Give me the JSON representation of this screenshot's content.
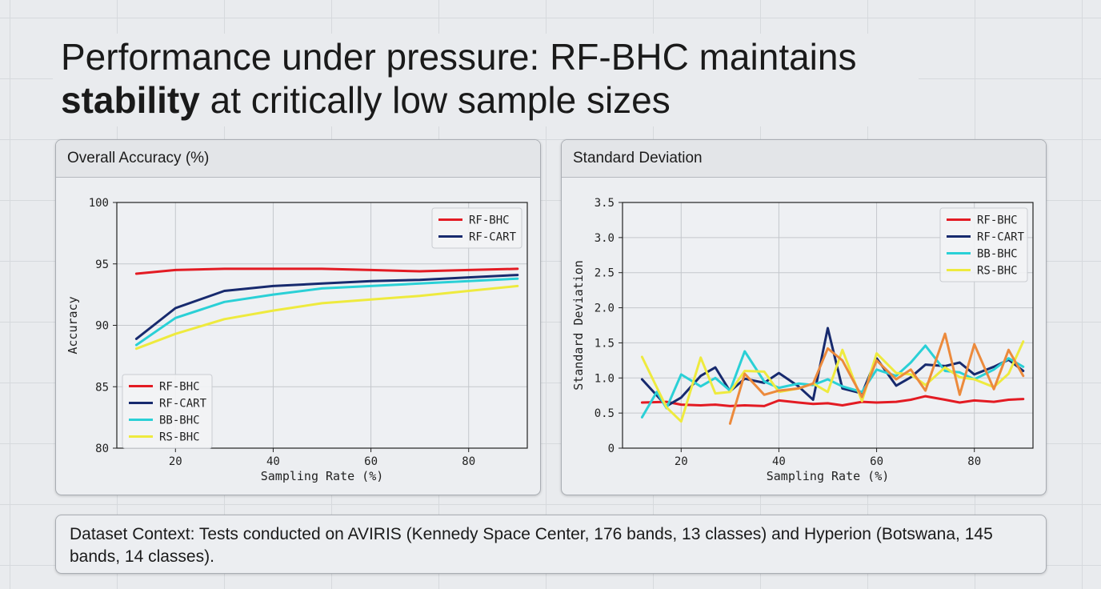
{
  "headline": {
    "part1": "Performance under pressure: RF-BHC maintains",
    "bold": "stability",
    "part2": " at critically low sample sizes"
  },
  "context": {
    "text": "Dataset Context: Tests conducted on AVIRIS (Kennedy Space Center, 176 bands, 13 classes) and Hyperion (Botswana, 145 bands, 14 classes)."
  },
  "colors": {
    "RF-BHC": "#e31b23",
    "RF-CART": "#172a6e",
    "BB-BHC": "#2ad0d6",
    "RS-BHC": "#eeea3e",
    "extra": "#ec8a3c"
  },
  "chart_data": [
    {
      "panel_title": "Overall Accuracy (%)",
      "type": "line",
      "xlabel": "Sampling Rate (%)",
      "ylabel": "Accuracy",
      "xlim": [
        8,
        92
      ],
      "ylim": [
        80,
        100
      ],
      "xticks": [
        20,
        40,
        60,
        80
      ],
      "yticks": [
        80,
        85,
        90,
        95,
        100
      ],
      "grid": true,
      "legends": [
        {
          "placement": "top-right",
          "entries": [
            "RF-BHC",
            "RF-CART"
          ]
        },
        {
          "placement": "bottom-left",
          "entries": [
            "RF-BHC",
            "RF-CART",
            "BB-BHC",
            "RS-BHC"
          ]
        }
      ],
      "series": [
        {
          "name": "RF-BHC",
          "x": [
            12,
            20,
            30,
            40,
            50,
            60,
            70,
            80,
            90
          ],
          "y": [
            94.2,
            94.5,
            94.6,
            94.6,
            94.6,
            94.5,
            94.4,
            94.5,
            94.6
          ]
        },
        {
          "name": "RF-CART",
          "x": [
            12,
            20,
            30,
            40,
            50,
            60,
            70,
            80,
            90
          ],
          "y": [
            88.9,
            91.4,
            92.8,
            93.2,
            93.4,
            93.6,
            93.7,
            93.9,
            94.1
          ]
        },
        {
          "name": "BB-BHC",
          "x": [
            12,
            20,
            30,
            40,
            50,
            60,
            70,
            80,
            90
          ],
          "y": [
            88.4,
            90.6,
            91.9,
            92.5,
            93.0,
            93.2,
            93.4,
            93.6,
            93.8
          ]
        },
        {
          "name": "RS-BHC",
          "x": [
            12,
            20,
            30,
            40,
            50,
            60,
            70,
            80,
            90
          ],
          "y": [
            88.1,
            89.3,
            90.5,
            91.2,
            91.8,
            92.1,
            92.4,
            92.8,
            93.2
          ]
        }
      ]
    },
    {
      "panel_title": "Standard Deviation",
      "type": "line",
      "xlabel": "Sampling Rate (%)",
      "ylabel": "Standard Deviation",
      "xlim": [
        8,
        92
      ],
      "ylim": [
        0,
        3.5
      ],
      "xticks": [
        20,
        40,
        60,
        80
      ],
      "yticks": [
        0,
        0.5,
        1.0,
        1.5,
        2.0,
        2.5,
        3.0,
        3.5
      ],
      "ytick_labels": [
        "0",
        "0.5",
        "1.0",
        "1.5",
        "2.0",
        "2.5",
        "3.0",
        "3.5"
      ],
      "grid": true,
      "legends": [
        {
          "placement": "top-right",
          "entries": [
            "RF-BHC",
            "RF-CART",
            "BB-BHC",
            "RS-BHC"
          ]
        }
      ],
      "series": [
        {
          "name": "RF-BHC",
          "x": [
            12,
            17,
            20,
            24,
            27,
            30,
            33,
            37,
            40,
            44,
            47,
            50,
            53,
            57,
            60,
            64,
            67,
            70,
            74,
            77,
            80,
            84,
            87,
            90
          ],
          "y": [
            0.65,
            0.66,
            0.62,
            0.61,
            0.62,
            0.6,
            0.61,
            0.6,
            0.68,
            0.65,
            0.63,
            0.64,
            0.61,
            0.66,
            0.65,
            0.66,
            0.69,
            0.74,
            0.69,
            0.65,
            0.68,
            0.66,
            0.69,
            0.7
          ]
        },
        {
          "name": "RF-CART",
          "x": [
            12,
            17,
            20,
            24,
            27,
            30,
            33,
            37,
            40,
            44,
            47,
            50,
            53,
            57,
            60,
            64,
            67,
            70,
            74,
            77,
            80,
            84,
            87,
            90
          ],
          "y": [
            0.98,
            0.6,
            0.72,
            1.03,
            1.15,
            0.81,
            0.99,
            0.93,
            1.07,
            0.88,
            0.69,
            1.71,
            0.85,
            0.78,
            1.28,
            0.89,
            1.01,
            1.19,
            1.17,
            1.22,
            1.05,
            1.16,
            1.26,
            1.1
          ]
        },
        {
          "name": "BB-BHC",
          "x": [
            12,
            15,
            17,
            20,
            24,
            27,
            30,
            33,
            37,
            40,
            44,
            47,
            50,
            53,
            57,
            60,
            64,
            67,
            70,
            74,
            77,
            80,
            84,
            87,
            90
          ],
          "y": [
            0.44,
            0.8,
            0.57,
            1.05,
            0.88,
            1.0,
            0.82,
            1.38,
            0.95,
            0.86,
            0.92,
            0.9,
            0.98,
            0.88,
            0.8,
            1.12,
            1.03,
            1.22,
            1.46,
            1.1,
            1.08,
            0.98,
            1.12,
            1.28,
            1.16
          ]
        },
        {
          "name": "RS-BHC",
          "x": [
            12,
            17,
            20,
            24,
            27,
            30,
            33,
            37,
            40,
            44,
            47,
            50,
            53,
            57,
            60,
            64,
            67,
            70,
            74,
            77,
            80,
            84,
            87,
            90
          ],
          "y": [
            1.3,
            0.58,
            0.38,
            1.29,
            0.78,
            0.8,
            1.1,
            1.09,
            0.8,
            0.85,
            0.92,
            0.8,
            1.4,
            0.67,
            1.35,
            1.07,
            1.05,
            0.9,
            1.15,
            1.01,
            0.98,
            0.87,
            1.06,
            1.52
          ]
        },
        {
          "name": "",
          "color_key": "extra",
          "x": [
            30,
            33,
            37,
            40,
            44,
            47,
            50,
            53,
            57,
            60,
            64,
            67,
            70,
            74,
            77,
            80,
            84,
            87,
            90
          ],
          "y": [
            0.35,
            1.06,
            0.76,
            0.82,
            0.85,
            0.92,
            1.42,
            1.25,
            0.73,
            1.25,
            0.98,
            1.12,
            0.82,
            1.63,
            0.76,
            1.48,
            0.84,
            1.4,
            1.03
          ]
        }
      ]
    }
  ]
}
